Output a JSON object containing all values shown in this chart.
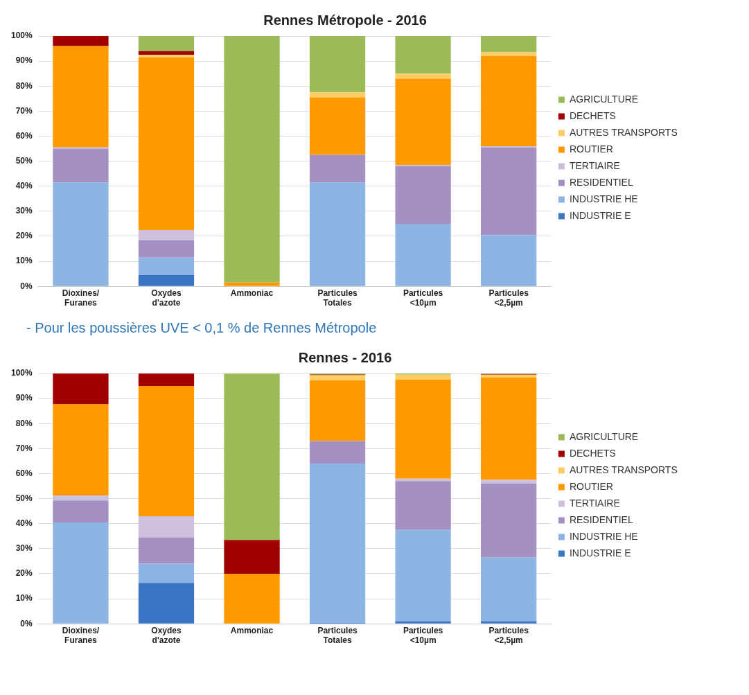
{
  "chart_data": [
    {
      "type": "bar",
      "title": "Rennes Métropole - 2016",
      "stacked": true,
      "legend": "right",
      "grid": "y",
      "categories": [
        "Dioxines/ Furanes",
        "Oxydes d'azote",
        "Ammoniac",
        "Particules Totales",
        "Particules <10µm",
        "Particules <2,5µm"
      ],
      "ylim": [
        0,
        100
      ],
      "yticks": [
        {
          "value": 0,
          "label": "0%"
        },
        {
          "value": 10,
          "label": "10%"
        },
        {
          "value": 20,
          "label": "20%"
        },
        {
          "value": 30,
          "label": "30%"
        },
        {
          "value": 40,
          "label": "40%"
        },
        {
          "value": 50,
          "label": "50%"
        },
        {
          "value": 60,
          "label": "60%"
        },
        {
          "value": 70,
          "label": "70%"
        },
        {
          "value": 80,
          "label": "80%"
        },
        {
          "value": 90,
          "label": "90%"
        },
        {
          "value": 100,
          "label": "100%"
        }
      ],
      "series": [
        {
          "name": "INDUSTRIE E",
          "color": "#3a75c4",
          "values": [
            0,
            4.5,
            0,
            0,
            0,
            0
          ]
        },
        {
          "name": "INDUSTRIE HE",
          "color": "#8db4e2",
          "values": [
            41.5,
            7,
            0,
            41.5,
            25,
            20.5
          ]
        },
        {
          "name": "RESIDENTIEL",
          "color": "#a590c4",
          "values": [
            13.5,
            7,
            0,
            11,
            23,
            35
          ]
        },
        {
          "name": "TERTIAIRE",
          "color": "#ccc0da",
          "values": [
            0.5,
            4,
            0,
            0,
            0.5,
            0.5
          ]
        },
        {
          "name": "ROUTIER",
          "color": "#ff9900",
          "values": [
            40.5,
            69,
            1.5,
            23,
            34.5,
            36
          ]
        },
        {
          "name": "AUTRES TRANSPORTS",
          "color": "#ffcc66",
          "values": [
            0,
            1,
            0,
            2,
            2,
            1.5
          ]
        },
        {
          "name": "DECHETS",
          "color": "#a00000",
          "values": [
            4,
            1.5,
            0,
            0,
            0,
            0
          ]
        },
        {
          "name": "AGRICULTURE",
          "color": "#9bbb59",
          "values": [
            0,
            6,
            98.5,
            22.5,
            15,
            6.5
          ]
        }
      ],
      "annotations": [
        "- Pour les poussières UVE < 0,1 % de Rennes Métropole"
      ]
    },
    {
      "type": "bar",
      "title": "Rennes - 2016",
      "stacked": true,
      "legend": "right",
      "grid": "y",
      "categories": [
        "Dioxines/ Furanes",
        "Oxydes d'azote",
        "Ammoniac",
        "Particules Totales",
        "Particules <10µm",
        "Particules <2,5µm"
      ],
      "ylim": [
        0,
        100
      ],
      "yticks": [
        {
          "value": 0,
          "label": "0%"
        },
        {
          "value": 10,
          "label": "10%"
        },
        {
          "value": 20,
          "label": "20%"
        },
        {
          "value": 30,
          "label": "30%"
        },
        {
          "value": 40,
          "label": "40%"
        },
        {
          "value": 50,
          "label": "50%"
        },
        {
          "value": 60,
          "label": "60%"
        },
        {
          "value": 70,
          "label": "70%"
        },
        {
          "value": 80,
          "label": "80%"
        },
        {
          "value": 90,
          "label": "90%"
        },
        {
          "value": 100,
          "label": "100%"
        }
      ],
      "series": [
        {
          "name": "INDUSTRIE E",
          "color": "#3a75c4",
          "values": [
            0,
            16.3,
            0,
            0.3,
            1,
            1
          ]
        },
        {
          "name": "INDUSTRIE HE",
          "color": "#8db4e2",
          "values": [
            40.5,
            7.7,
            0,
            63.7,
            36.5,
            25.5
          ]
        },
        {
          "name": "RESIDENTIEL",
          "color": "#a590c4",
          "values": [
            8.8,
            10.5,
            0,
            9,
            19.5,
            29.5
          ]
        },
        {
          "name": "TERTIAIRE",
          "color": "#ccc0da",
          "values": [
            2,
            8.5,
            0,
            0,
            1,
            1.5
          ]
        },
        {
          "name": "ROUTIER",
          "color": "#ff9900",
          "values": [
            36.4,
            52,
            20,
            24.3,
            39.5,
            41
          ]
        },
        {
          "name": "AUTRES TRANSPORTS",
          "color": "#ffcc66",
          "values": [
            0,
            0,
            0,
            2,
            2,
            1
          ]
        },
        {
          "name": "DECHETS",
          "color": "#a00000",
          "values": [
            12.3,
            5,
            13.5,
            0.3,
            0,
            0.3
          ]
        },
        {
          "name": "AGRICULTURE",
          "color": "#9bbb59",
          "values": [
            0,
            0,
            66.5,
            0.4,
            0.5,
            0.2
          ]
        }
      ]
    }
  ]
}
